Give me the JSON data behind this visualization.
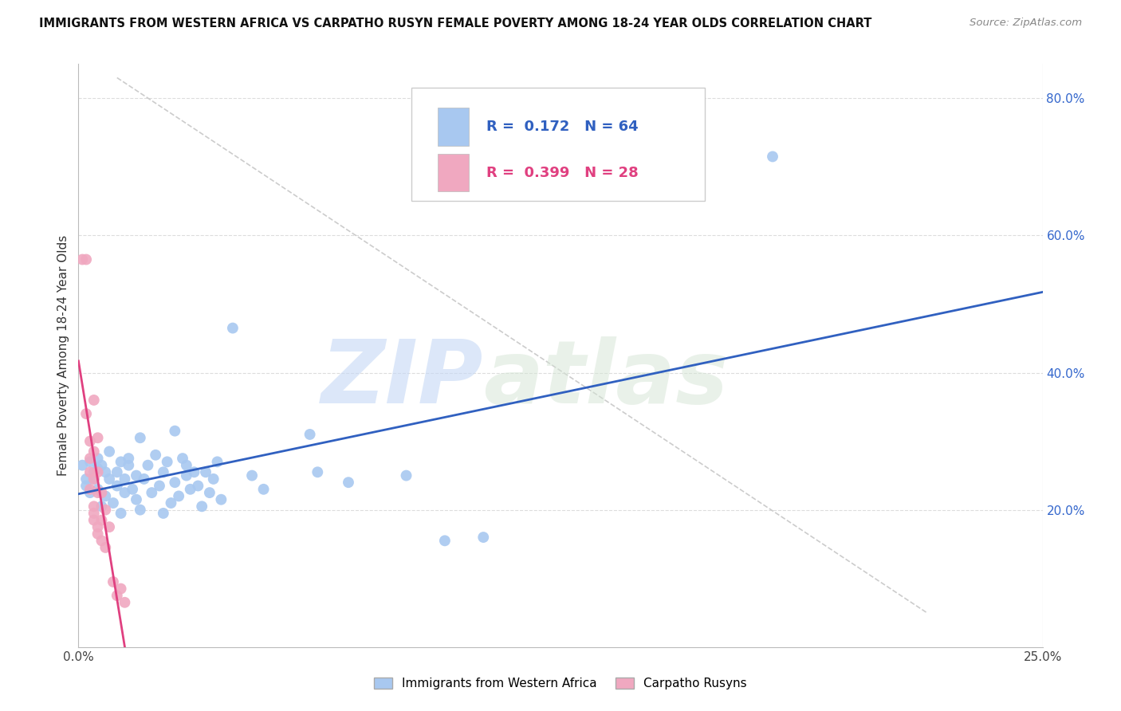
{
  "title": "IMMIGRANTS FROM WESTERN AFRICA VS CARPATHO RUSYN FEMALE POVERTY AMONG 18-24 YEAR OLDS CORRELATION CHART",
  "source": "Source: ZipAtlas.com",
  "ylabel": "Female Poverty Among 18-24 Year Olds",
  "xlim": [
    0.0,
    0.25
  ],
  "ylim": [
    0.0,
    0.85
  ],
  "blue_color": "#a8c8f0",
  "pink_color": "#f0a8c0",
  "blue_line_color": "#3060c0",
  "pink_line_color": "#e04080",
  "blue_scatter": [
    [
      0.001,
      0.265
    ],
    [
      0.002,
      0.245
    ],
    [
      0.002,
      0.235
    ],
    [
      0.003,
      0.27
    ],
    [
      0.003,
      0.225
    ],
    [
      0.004,
      0.255
    ],
    [
      0.004,
      0.245
    ],
    [
      0.005,
      0.275
    ],
    [
      0.005,
      0.23
    ],
    [
      0.005,
      0.26
    ],
    [
      0.006,
      0.205
    ],
    [
      0.006,
      0.265
    ],
    [
      0.007,
      0.22
    ],
    [
      0.007,
      0.255
    ],
    [
      0.008,
      0.285
    ],
    [
      0.008,
      0.245
    ],
    [
      0.009,
      0.21
    ],
    [
      0.01,
      0.255
    ],
    [
      0.01,
      0.235
    ],
    [
      0.011,
      0.27
    ],
    [
      0.011,
      0.195
    ],
    [
      0.012,
      0.245
    ],
    [
      0.012,
      0.225
    ],
    [
      0.013,
      0.265
    ],
    [
      0.013,
      0.275
    ],
    [
      0.014,
      0.23
    ],
    [
      0.015,
      0.25
    ],
    [
      0.015,
      0.215
    ],
    [
      0.016,
      0.305
    ],
    [
      0.016,
      0.2
    ],
    [
      0.017,
      0.245
    ],
    [
      0.018,
      0.265
    ],
    [
      0.019,
      0.225
    ],
    [
      0.02,
      0.28
    ],
    [
      0.021,
      0.235
    ],
    [
      0.022,
      0.255
    ],
    [
      0.022,
      0.195
    ],
    [
      0.023,
      0.27
    ],
    [
      0.024,
      0.21
    ],
    [
      0.025,
      0.315
    ],
    [
      0.025,
      0.24
    ],
    [
      0.026,
      0.22
    ],
    [
      0.027,
      0.275
    ],
    [
      0.028,
      0.265
    ],
    [
      0.028,
      0.25
    ],
    [
      0.029,
      0.23
    ],
    [
      0.03,
      0.255
    ],
    [
      0.031,
      0.235
    ],
    [
      0.032,
      0.205
    ],
    [
      0.033,
      0.255
    ],
    [
      0.034,
      0.225
    ],
    [
      0.035,
      0.245
    ],
    [
      0.036,
      0.27
    ],
    [
      0.037,
      0.215
    ],
    [
      0.04,
      0.465
    ],
    [
      0.045,
      0.25
    ],
    [
      0.048,
      0.23
    ],
    [
      0.06,
      0.31
    ],
    [
      0.062,
      0.255
    ],
    [
      0.07,
      0.24
    ],
    [
      0.085,
      0.25
    ],
    [
      0.095,
      0.155
    ],
    [
      0.105,
      0.16
    ],
    [
      0.18,
      0.715
    ]
  ],
  "pink_scatter": [
    [
      0.001,
      0.565
    ],
    [
      0.002,
      0.565
    ],
    [
      0.002,
      0.34
    ],
    [
      0.003,
      0.3
    ],
    [
      0.003,
      0.275
    ],
    [
      0.003,
      0.255
    ],
    [
      0.003,
      0.23
    ],
    [
      0.004,
      0.36
    ],
    [
      0.004,
      0.285
    ],
    [
      0.004,
      0.245
    ],
    [
      0.004,
      0.205
    ],
    [
      0.004,
      0.195
    ],
    [
      0.004,
      0.185
    ],
    [
      0.005,
      0.305
    ],
    [
      0.005,
      0.255
    ],
    [
      0.005,
      0.225
    ],
    [
      0.005,
      0.175
    ],
    [
      0.005,
      0.165
    ],
    [
      0.006,
      0.225
    ],
    [
      0.006,
      0.185
    ],
    [
      0.006,
      0.155
    ],
    [
      0.007,
      0.2
    ],
    [
      0.007,
      0.145
    ],
    [
      0.008,
      0.175
    ],
    [
      0.009,
      0.095
    ],
    [
      0.01,
      0.075
    ],
    [
      0.011,
      0.085
    ],
    [
      0.012,
      0.065
    ]
  ],
  "blue_R": 0.172,
  "blue_N": 64,
  "pink_R": 0.399,
  "pink_N": 28,
  "watermark_zip": "ZIP",
  "watermark_atlas": "atlas",
  "legend_label_blue": "Immigrants from Western Africa",
  "legend_label_pink": "Carpatho Rusyns"
}
